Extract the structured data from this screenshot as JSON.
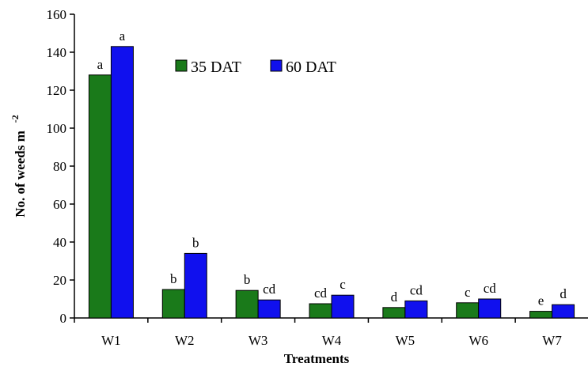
{
  "chart_data": {
    "type": "bar",
    "categories": [
      "W1",
      "W2",
      "W3",
      "W4",
      "W5",
      "W6",
      "W7"
    ],
    "series": [
      {
        "name": "35 DAT",
        "color": "#1a7a1a",
        "values": [
          128,
          15,
          14.5,
          7.5,
          5.5,
          8,
          3.5
        ],
        "labels": [
          "a",
          "b",
          "b",
          "cd",
          "d",
          "c",
          "e"
        ]
      },
      {
        "name": "60 DAT",
        "color": "#1010ee",
        "values": [
          143,
          34,
          9.5,
          12,
          9,
          10,
          7
        ],
        "labels": [
          "a",
          "b",
          "cd",
          "c",
          "cd",
          "cd",
          "d"
        ]
      }
    ],
    "xlabel": "Treatments",
    "ylabel": "No. of weeds m",
    "ylabel_superscript": "-2",
    "ylim": [
      0,
      160
    ],
    "yticks": [
      "0",
      "20",
      "40",
      "60",
      "80",
      "100",
      "120",
      "140",
      "160"
    ],
    "legend_position": "top-center",
    "grid": false
  }
}
